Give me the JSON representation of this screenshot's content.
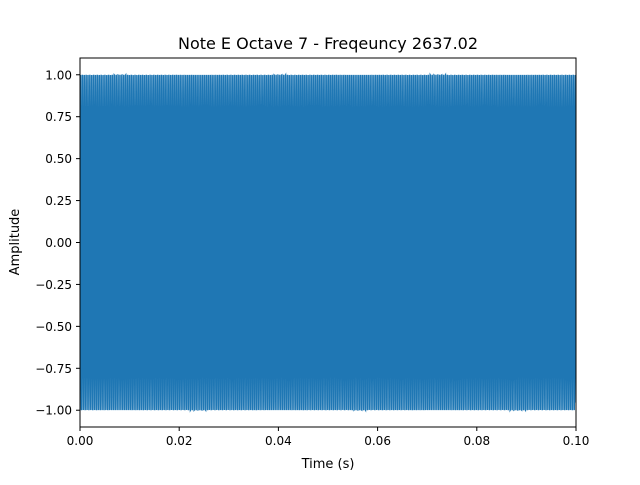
{
  "chart_data": {
    "type": "line",
    "title": "Note E Octave 7 - Freqeuncy 2637.02",
    "xlabel": "Time (s)",
    "ylabel": "Amplitude",
    "xlim": [
      0.0,
      0.1
    ],
    "ylim": [
      -1.1,
      1.1
    ],
    "xticks": [
      "0.00",
      "0.02",
      "0.04",
      "0.06",
      "0.08",
      "0.10"
    ],
    "yticks": [
      "−1.00",
      "−0.75",
      "−0.50",
      "−0.25",
      "0.00",
      "0.25",
      "0.50",
      "0.75",
      "1.00"
    ],
    "grid": false,
    "legend": "none",
    "series": [
      {
        "color": "#1f77b4",
        "frequency_hz": 2637.02,
        "amplitude": 1.0,
        "x_start": 0.0,
        "x_end": 0.1
      }
    ]
  }
}
